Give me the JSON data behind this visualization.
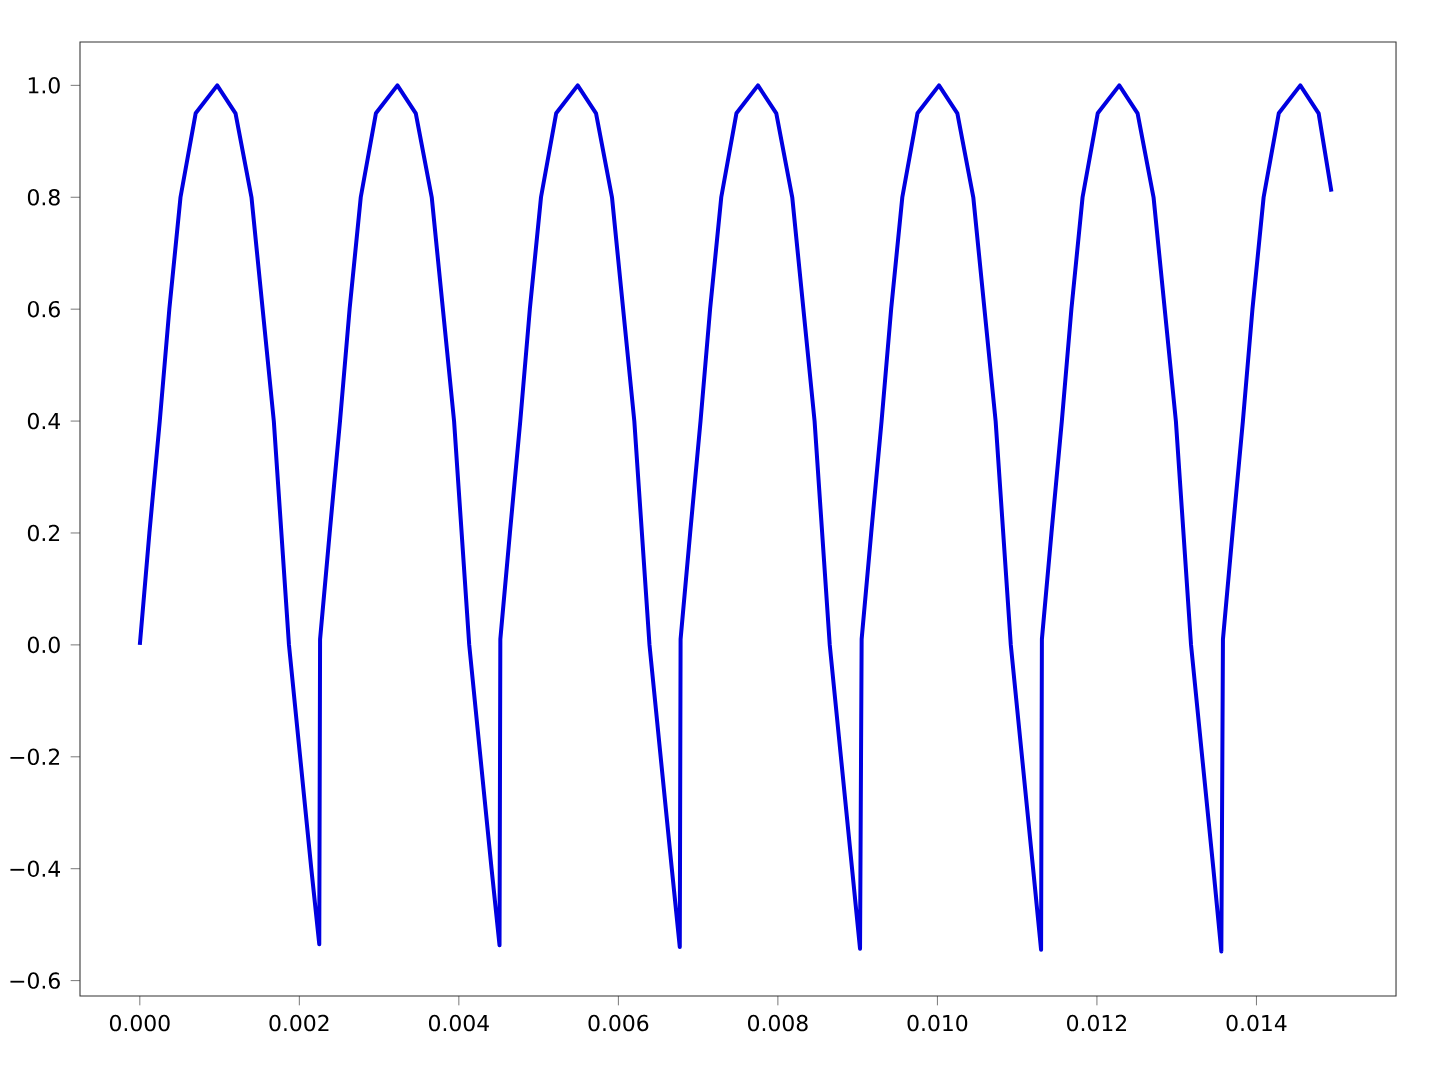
{
  "chart_data": {
    "type": "line",
    "xlim": [
      -0.00075,
      0.01575
    ],
    "ylim": [
      -0.6275,
      1.0775
    ],
    "xticks": [
      {
        "value": 0,
        "label": "0.000"
      },
      {
        "value": 0.002,
        "label": "0.002"
      },
      {
        "value": 0.004,
        "label": "0.004"
      },
      {
        "value": 0.006,
        "label": "0.006"
      },
      {
        "value": 0.008,
        "label": "0.008"
      },
      {
        "value": 0.01,
        "label": "0.010"
      },
      {
        "value": 0.012,
        "label": "0.012"
      },
      {
        "value": 0.014,
        "label": "0.014"
      }
    ],
    "yticks": [
      {
        "value": -0.6,
        "label": "−0.6"
      },
      {
        "value": -0.4,
        "label": "−0.4"
      },
      {
        "value": -0.2,
        "label": "−0.2"
      },
      {
        "value": 0,
        "label": "0.0"
      },
      {
        "value": 0.2,
        "label": "0.2"
      },
      {
        "value": 0.4,
        "label": "0.4"
      },
      {
        "value": 0.6,
        "label": "0.6"
      },
      {
        "value": 0.8,
        "label": "0.8"
      },
      {
        "value": 1.0,
        "label": "1.0"
      }
    ],
    "grid": false,
    "legend": false,
    "marker": "none",
    "line_style": "solid",
    "series": [
      {
        "color": "#0000e0",
        "x": [
          0,
          0.00012,
          0.00025,
          0.00037,
          0.00051,
          0.0007,
          0.00097,
          0.0012,
          0.0014,
          0.00168,
          0.00187,
          0.00215,
          0.00225,
          0.00226,
          0.00238,
          0.00251,
          0.00263,
          0.00277,
          0.00296,
          0.00323,
          0.00346,
          0.00366,
          0.00394,
          0.00413,
          0.00441,
          0.00451,
          0.00452,
          0.00464,
          0.00477,
          0.00489,
          0.00503,
          0.00522,
          0.00549,
          0.00572,
          0.00592,
          0.0062,
          0.00639,
          0.00667,
          0.00677,
          0.00678,
          0.0069,
          0.00703,
          0.00715,
          0.00729,
          0.00748,
          0.00775,
          0.00798,
          0.00818,
          0.00846,
          0.00865,
          0.00893,
          0.00903,
          0.00905,
          0.00917,
          0.0093,
          0.00942,
          0.00956,
          0.00975,
          0.01002,
          0.01025,
          0.01045,
          0.01073,
          0.01092,
          0.0112,
          0.0113,
          0.01131,
          0.01143,
          0.01156,
          0.01168,
          0.01182,
          0.01201,
          0.01228,
          0.01251,
          0.01271,
          0.01299,
          0.01318,
          0.01346,
          0.01356,
          0.01358,
          0.0137,
          0.01383,
          0.01395,
          0.01409,
          0.01428,
          0.01455,
          0.01478,
          0.01494
        ],
        "values": [
          0,
          0.2,
          0.4,
          0.6,
          0.8,
          0.95,
          1.0,
          0.95,
          0.8,
          0.4,
          0,
          -0.4,
          -0.535,
          0.01,
          0.2,
          0.4,
          0.6,
          0.8,
          0.95,
          1.0,
          0.95,
          0.8,
          0.4,
          0,
          -0.4,
          -0.537,
          0.01,
          0.2,
          0.4,
          0.6,
          0.8,
          0.95,
          1.0,
          0.95,
          0.8,
          0.4,
          0,
          -0.4,
          -0.54,
          0.01,
          0.2,
          0.4,
          0.6,
          0.8,
          0.95,
          1.0,
          0.95,
          0.8,
          0.4,
          0,
          -0.4,
          -0.543,
          0.01,
          0.2,
          0.4,
          0.6,
          0.8,
          0.95,
          1.0,
          0.95,
          0.8,
          0.4,
          0,
          -0.4,
          -0.545,
          0.01,
          0.2,
          0.4,
          0.6,
          0.8,
          0.95,
          1.0,
          0.95,
          0.8,
          0.4,
          0,
          -0.4,
          -0.548,
          0.01,
          0.2,
          0.4,
          0.6,
          0.8,
          0.95,
          1.0,
          0.95,
          0.81
        ]
      }
    ]
  }
}
